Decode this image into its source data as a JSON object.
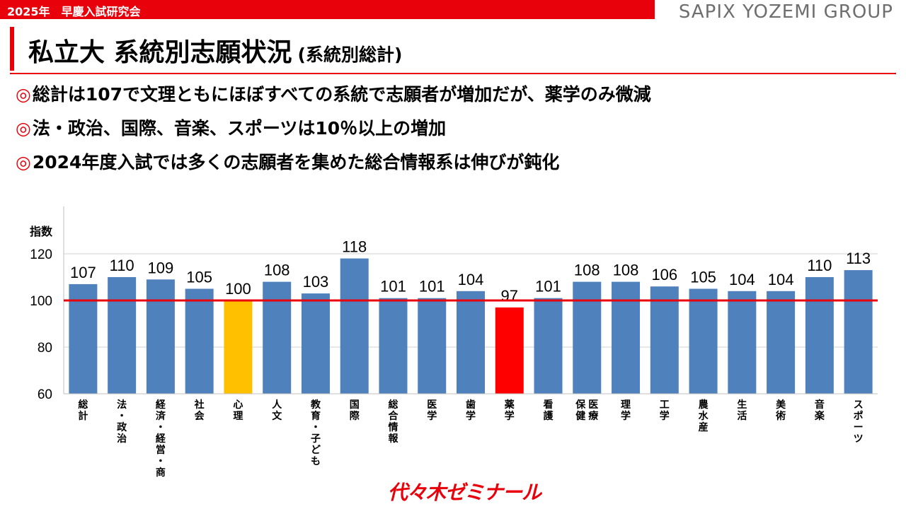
{
  "header": {
    "bar_text": "2025年　早慶入試研究会",
    "brand": "SAPIX YOZEMI GROUP"
  },
  "slide": {
    "title": "私立大 系統別志願状況",
    "subtitle": "(系統別総計)",
    "bullets": [
      "総計は107で文理ともにほぼすべての系統で志願者が増加だが、薬学のみ微減",
      "法・政治、国際、音楽、スポーツは10％以上の増加",
      "2024年度入試では多くの志願者を集めた総合情報系は伸びが鈍化"
    ],
    "bullet_mark": "◎"
  },
  "footer": {
    "logo_text": "代々木ゼミナール"
  },
  "colors": {
    "bar": "#4f81bd",
    "highlight_100": "#ffc000",
    "highlight_decrease": "#ff0000",
    "reference_line": "#e8000b",
    "accent": "#e8000b"
  },
  "chart_data": {
    "type": "bar",
    "ylabel": "指数",
    "ylim": [
      60,
      120
    ],
    "yticks": [
      60,
      80,
      100,
      120
    ],
    "reference_line": 100,
    "grid": false,
    "categories": [
      "総計",
      "法・政治",
      "経済・経営・商",
      "社会",
      "心理",
      "人文",
      "教育・子ども",
      "国際",
      "総合情報",
      "医学",
      "歯学",
      "薬学",
      "看護",
      "保健 医療",
      "理学",
      "工学",
      "農水産",
      "生活",
      "美術",
      "音楽",
      "スポーツ"
    ],
    "values": [
      107,
      110,
      109,
      105,
      100,
      108,
      103,
      118,
      101,
      101,
      104,
      97,
      101,
      108,
      108,
      106,
      105,
      104,
      104,
      110,
      113
    ],
    "highlight": {
      "心理": "highlight_100",
      "薬学": "highlight_decrease"
    }
  }
}
